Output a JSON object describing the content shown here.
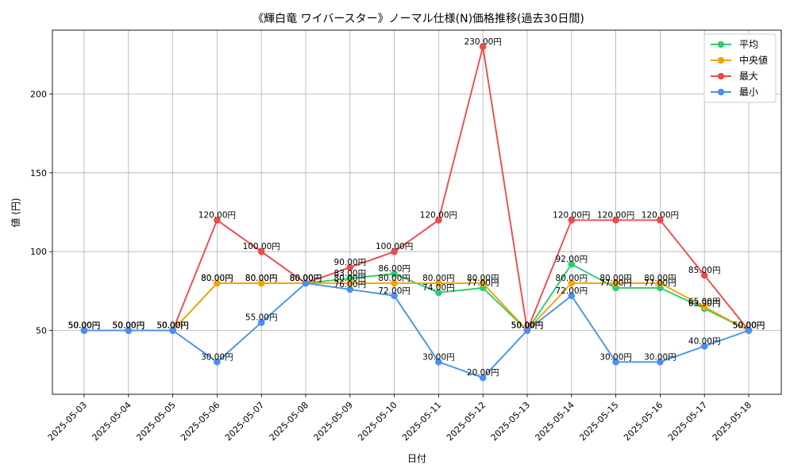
{
  "chart_data": {
    "type": "line",
    "title": "《輝白竜 ワイバースター》ノーマル仕様(N)価格推移(過去30日間)",
    "xlabel": "日付",
    "ylabel": "値 (円)",
    "ylim": [
      9.5,
      240.5
    ],
    "yticks": [
      50,
      100,
      150,
      200
    ],
    "grid": true,
    "legend_position": "top-right",
    "value_suffix": "円",
    "categories": [
      "2025-05-03",
      "2025-05-04",
      "2025-05-05",
      "2025-05-06",
      "2025-05-07",
      "2025-05-08",
      "2025-05-09",
      "2025-05-10",
      "2025-05-11",
      "2025-05-12",
      "2025-05-13",
      "2025-05-14",
      "2025-05-15",
      "2025-05-16",
      "2025-05-17",
      "2025-05-18"
    ],
    "series": [
      {
        "name": "平均",
        "color": "#2ecc71",
        "values": [
          50,
          50,
          50,
          80,
          80,
          80,
          83,
          86,
          74,
          77,
          50,
          92,
          77,
          77,
          63.9,
          50
        ]
      },
      {
        "name": "中央値",
        "color": "#f5a300",
        "values": [
          50,
          50,
          50,
          80,
          80,
          80,
          80,
          80,
          80,
          80,
          50,
          80,
          80,
          80,
          65,
          50
        ]
      },
      {
        "name": "最大",
        "color": "#ef4b4b",
        "values": [
          50,
          50,
          50,
          120,
          100,
          80,
          90,
          100,
          120,
          230,
          50,
          120,
          120,
          120,
          85,
          50
        ]
      },
      {
        "name": "最小",
        "color": "#4a90ee",
        "values": [
          50,
          50,
          50,
          30,
          55,
          80,
          76,
          72,
          30,
          20,
          50,
          72,
          30,
          30,
          40,
          50
        ]
      }
    ],
    "data_labels": [
      {
        "series": 0,
        "texts": [
          "50.00円",
          "50.00円",
          "50.00円",
          "80.00円",
          "80.00円",
          "80.00円",
          "83.00円",
          "86.00円",
          "74.00円",
          "77.00円",
          "50.00円",
          "92.00円",
          "77.00円",
          "77.00円",
          "63.90円",
          "50.00円"
        ]
      },
      {
        "series": 1,
        "texts": [
          "50.00円",
          "50.00円",
          "50.00円",
          "80.00円",
          "80.00円",
          "80.00円",
          "80.00円",
          "80.00円",
          "80.00円",
          "80.00円",
          "50.00円",
          "80.00円",
          "80.00円",
          "80.00円",
          "65.00円",
          "50.00円"
        ]
      },
      {
        "series": 2,
        "texts": [
          "50.00円",
          "50.00円",
          "50.00円",
          "120.00円",
          "100.00円",
          "80.00円",
          "90.00円",
          "100.00円",
          "120.00円",
          "230.00円",
          "50.00円",
          "120.00円",
          "120.00円",
          "120.00円",
          "85.00円",
          "50.00円"
        ]
      },
      {
        "series": 3,
        "texts": [
          "50.00円",
          "50.00円",
          "50.00円",
          "30.00円",
          "55.00円",
          "80.00円",
          "76.00円",
          "72.00円",
          "30.00円",
          "20.00円",
          "50.00円",
          "72.00円",
          "30.00円",
          "30.00円",
          "40.00円",
          "50.00円"
        ]
      }
    ]
  }
}
